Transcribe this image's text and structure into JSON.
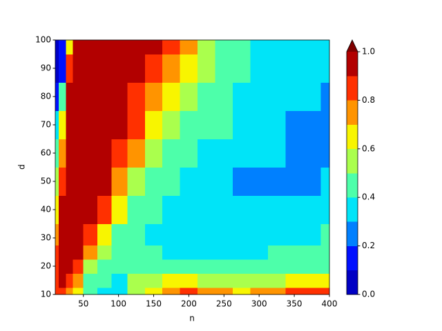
{
  "chart_data": {
    "type": "contour",
    "xlabel": "n",
    "ylabel": "d",
    "x": [
      10,
      20,
      30,
      40,
      60,
      80,
      100,
      125,
      150,
      175,
      200,
      225,
      250,
      275,
      300,
      325,
      350,
      375,
      400
    ],
    "y": [
      10,
      15,
      20,
      25,
      30,
      40,
      50,
      60,
      70,
      80,
      90,
      100
    ],
    "z": [
      [
        0.85,
        0.85,
        0.7,
        0.6,
        0.4,
        0.35,
        0.35,
        0.55,
        0.65,
        0.75,
        0.8,
        0.75,
        0.7,
        0.65,
        0.7,
        0.75,
        0.8,
        0.85,
        0.85
      ],
      [
        0.85,
        0.9,
        0.85,
        0.7,
        0.45,
        0.4,
        0.35,
        0.5,
        0.55,
        0.6,
        0.6,
        0.55,
        0.55,
        0.5,
        0.5,
        0.55,
        0.6,
        0.65,
        0.65
      ],
      [
        0.85,
        0.95,
        0.95,
        0.85,
        0.55,
        0.45,
        0.4,
        0.45,
        0.45,
        0.45,
        0.45,
        0.42,
        0.42,
        0.43,
        0.42,
        0.42,
        0.43,
        0.45,
        0.48
      ],
      [
        0.8,
        0.95,
        0.95,
        0.9,
        0.75,
        0.5,
        0.42,
        0.4,
        0.4,
        0.38,
        0.38,
        0.38,
        0.38,
        0.38,
        0.38,
        0.4,
        0.4,
        0.42,
        0.42
      ],
      [
        0.75,
        0.95,
        0.95,
        0.95,
        0.85,
        0.6,
        0.45,
        0.4,
        0.38,
        0.37,
        0.36,
        0.36,
        0.35,
        0.35,
        0.36,
        0.36,
        0.37,
        0.38,
        0.4
      ],
      [
        0.6,
        0.95,
        0.95,
        0.95,
        0.92,
        0.8,
        0.6,
        0.45,
        0.4,
        0.38,
        0.37,
        0.36,
        0.33,
        0.33,
        0.35,
        0.32,
        0.32,
        0.33,
        0.35
      ],
      [
        0.5,
        0.85,
        0.95,
        0.95,
        0.95,
        0.9,
        0.75,
        0.55,
        0.45,
        0.4,
        0.38,
        0.37,
        0.35,
        0.28,
        0.28,
        0.28,
        0.28,
        0.27,
        0.3
      ],
      [
        0.4,
        0.75,
        0.95,
        0.95,
        0.95,
        0.95,
        0.85,
        0.7,
        0.55,
        0.45,
        0.4,
        0.38,
        0.38,
        0.35,
        0.33,
        0.32,
        0.28,
        0.25,
        0.27
      ],
      [
        0.3,
        0.6,
        0.95,
        0.95,
        0.95,
        0.95,
        0.92,
        0.8,
        0.65,
        0.5,
        0.45,
        0.42,
        0.4,
        0.37,
        0.35,
        0.33,
        0.28,
        0.28,
        0.27
      ],
      [
        0.15,
        0.4,
        0.95,
        0.95,
        0.95,
        0.95,
        0.95,
        0.88,
        0.75,
        0.6,
        0.5,
        0.45,
        0.42,
        0.38,
        0.36,
        0.35,
        0.32,
        0.32,
        0.28
      ],
      [
        0.05,
        0.15,
        0.85,
        0.95,
        0.95,
        0.95,
        0.95,
        0.92,
        0.85,
        0.7,
        0.6,
        0.5,
        0.45,
        0.42,
        0.37,
        0.36,
        0.35,
        0.34,
        0.32
      ],
      [
        0.05,
        0.1,
        0.6,
        0.95,
        0.95,
        0.95,
        0.95,
        0.95,
        0.92,
        0.8,
        0.7,
        0.55,
        0.45,
        0.45,
        0.38,
        0.37,
        0.37,
        0.36,
        0.35
      ]
    ],
    "levels": [
      0,
      0.1,
      0.2,
      0.3,
      0.4,
      0.5,
      0.6,
      0.7,
      0.8,
      0.9,
      1
    ],
    "colors": [
      "#0000c4",
      "#0010ff",
      "#0080ff",
      "#00e4f8",
      "#4dffaa",
      "#aaff4d",
      "#f8f500",
      "#ff9400",
      "#ff3000",
      "#b20000",
      "#7f0000"
    ],
    "extend": "max",
    "xlim": [
      10,
      400
    ],
    "xticks": [
      50,
      100,
      150,
      200,
      250,
      300,
      350,
      400
    ],
    "ylim": [
      10,
      100
    ],
    "yticks": [
      10,
      20,
      30,
      40,
      50,
      60,
      70,
      80,
      90,
      100
    ],
    "clim": [
      0,
      1
    ],
    "cticks": [
      {
        "value": 0,
        "label": "0.0"
      },
      0.2,
      0.4,
      0.6,
      0.8,
      {
        "value": 1,
        "label": "1.0"
      }
    ]
  }
}
